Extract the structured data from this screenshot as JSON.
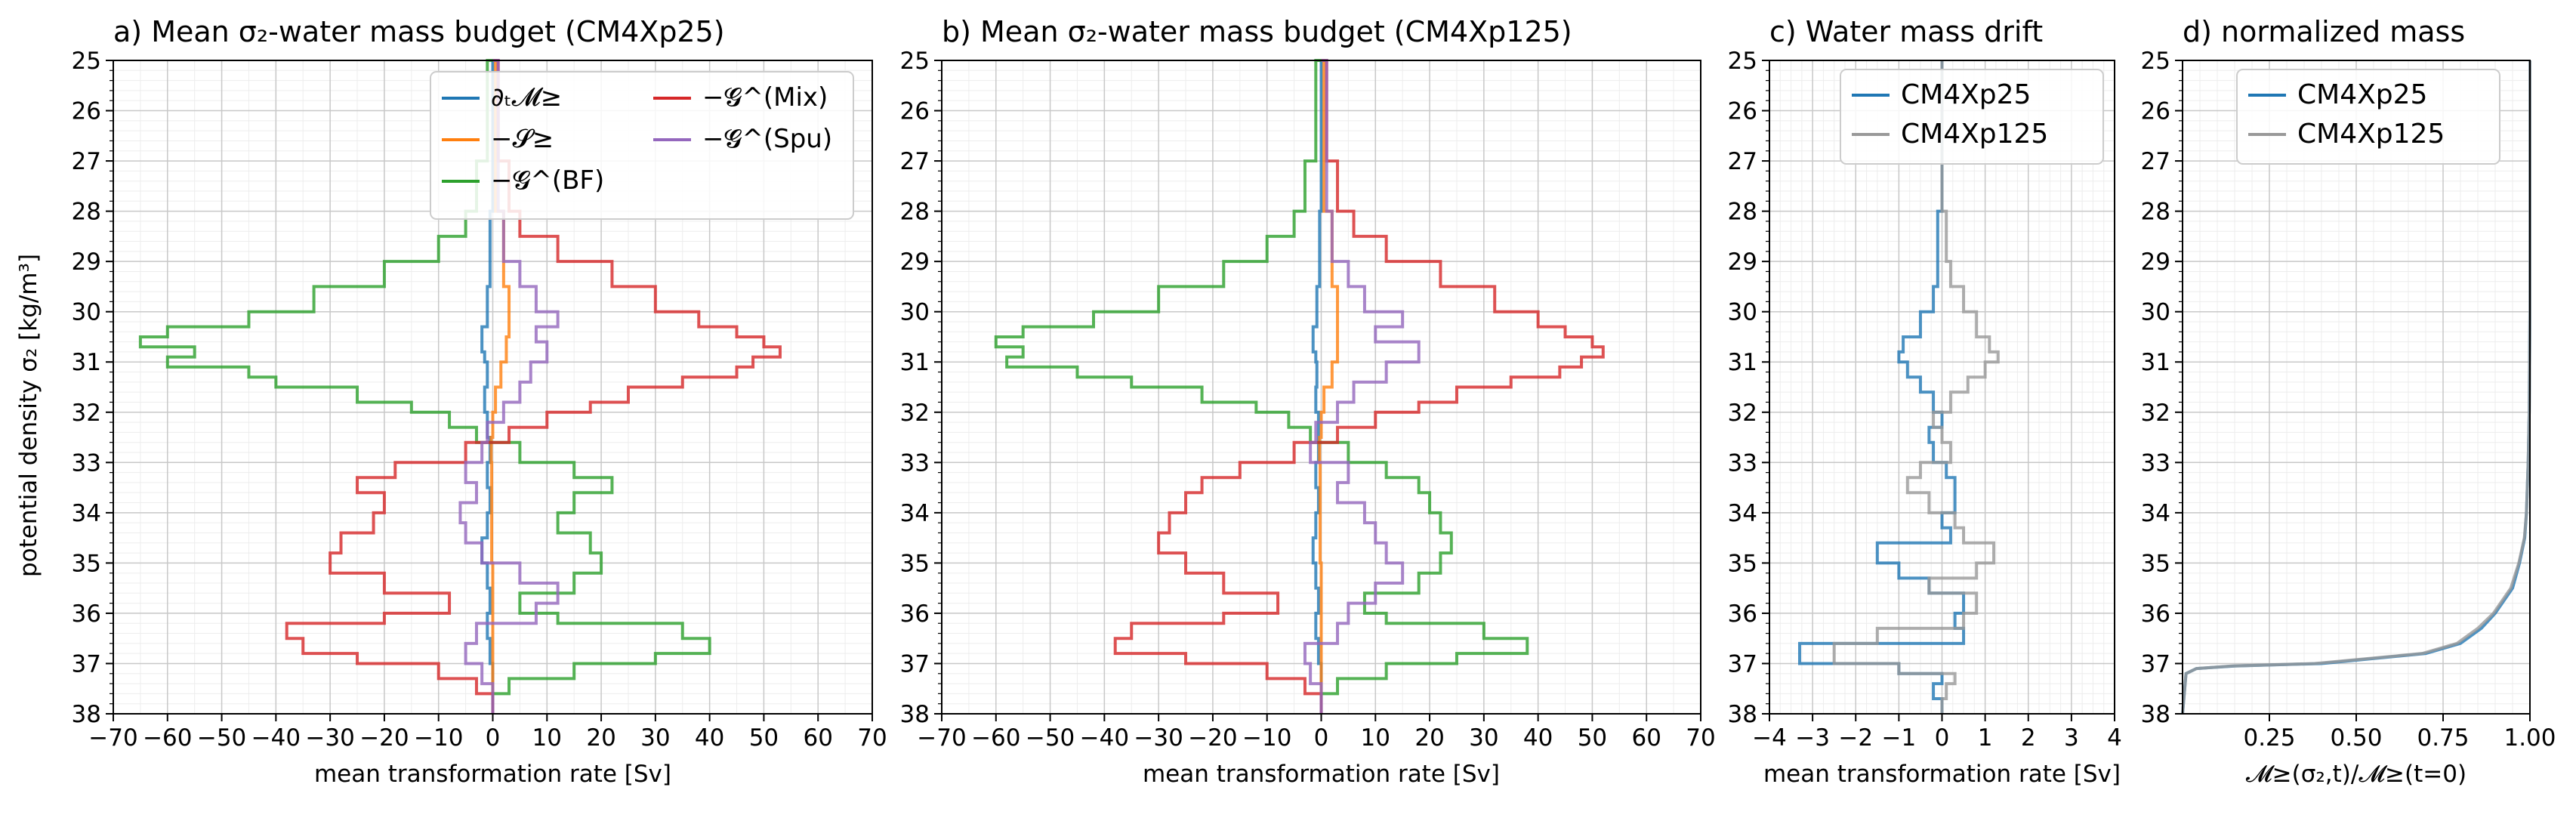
{
  "figure": {
    "ylabel": "potential density σ₂ [kg/m³]"
  },
  "chart_data": [
    {
      "type": "line",
      "panel": "a",
      "title": "a) Mean σ₂-water mass budget (CM4Xp25)",
      "xlabel": "mean transformation rate [Sv]",
      "xlim": [
        -70,
        70
      ],
      "ylim": [
        25,
        38
      ],
      "y_inverted": true,
      "grid": true,
      "legend_position": "upper-right",
      "legend_columns": 2,
      "xticks": [
        -70,
        -60,
        -50,
        -40,
        -30,
        -20,
        -10,
        0,
        10,
        20,
        30,
        40,
        50,
        60,
        70
      ],
      "yticks": [
        25,
        26,
        27,
        28,
        29,
        30,
        31,
        32,
        33,
        34,
        35,
        36,
        37,
        38
      ],
      "series": [
        {
          "name": "∂ₜ𝓜≥",
          "color": "#1f77b4",
          "y": [
            25,
            28,
            29.5,
            30.3,
            30.8,
            31,
            31.5,
            32,
            32.5,
            33,
            33.5,
            34,
            34.5,
            35,
            35.5,
            36,
            36.5,
            37,
            37.5,
            38
          ],
          "x": [
            0,
            0,
            -0.5,
            -1,
            -2,
            -1.5,
            -1,
            -1.5,
            -1,
            -0.5,
            -1,
            -0.5,
            -1,
            -2,
            -1,
            -0.5,
            -1,
            -0.5,
            0,
            0
          ]
        },
        {
          "name": "−𝓢≥",
          "color": "#ff7f0e",
          "y": [
            25,
            28,
            29.5,
            30.5,
            31,
            31.5,
            32,
            32.5,
            33,
            34,
            35,
            36,
            37,
            38
          ],
          "x": [
            0,
            0.5,
            2,
            3,
            2.5,
            1.5,
            0.5,
            0,
            -0.3,
            -0.2,
            -0.2,
            0,
            0,
            0
          ]
        },
        {
          "name": "−𝓖^(BF)",
          "color": "#2ca02c",
          "y": [
            25,
            27,
            28,
            28.5,
            29,
            29.5,
            30,
            30.3,
            30.5,
            30.7,
            30.9,
            31.1,
            31.3,
            31.5,
            31.8,
            32,
            32.3,
            32.6,
            33,
            33.3,
            33.6,
            34,
            34.4,
            34.8,
            35.2,
            35.6,
            36,
            36.2,
            36.5,
            36.8,
            37,
            37.3,
            37.6,
            38
          ],
          "x": [
            0,
            -1,
            -3,
            -5,
            -10,
            -20,
            -33,
            -45,
            -60,
            -65,
            -55,
            -60,
            -45,
            -40,
            -25,
            -15,
            -8,
            -3,
            5,
            15,
            22,
            15,
            12,
            18,
            20,
            15,
            5,
            12,
            35,
            40,
            30,
            15,
            3,
            0
          ]
        },
        {
          "name": "−𝓖^(Mix)",
          "color": "#d62728",
          "y": [
            25,
            27,
            28,
            28.5,
            29,
            29.5,
            30,
            30.3,
            30.5,
            30.7,
            30.9,
            31.1,
            31.3,
            31.5,
            31.8,
            32,
            32.3,
            32.6,
            33,
            33.3,
            33.6,
            34,
            34.4,
            34.8,
            35.2,
            35.6,
            36,
            36.2,
            36.5,
            36.8,
            37,
            37.3,
            37.6,
            38
          ],
          "x": [
            0,
            1,
            3,
            5,
            12,
            22,
            30,
            38,
            45,
            50,
            53,
            48,
            45,
            35,
            25,
            18,
            10,
            3,
            -5,
            -18,
            -25,
            -20,
            -22,
            -28,
            -30,
            -20,
            -8,
            -20,
            -38,
            -35,
            -25,
            -10,
            -3,
            0
          ]
        },
        {
          "name": "−𝓖^(Spu)",
          "color": "#9467bd",
          "y": [
            25,
            28,
            29,
            29.5,
            30,
            30.3,
            30.6,
            31,
            31.4,
            31.8,
            32.2,
            32.6,
            33,
            33.4,
            33.8,
            34.2,
            34.6,
            35,
            35.4,
            35.8,
            36.2,
            36.6,
            37,
            37.4,
            37.8,
            38
          ],
          "x": [
            0,
            1,
            2,
            5,
            8,
            12,
            8,
            10,
            7,
            5,
            2,
            -1,
            -2,
            -5,
            -3,
            -6,
            -5,
            -2,
            5,
            12,
            8,
            -3,
            -5,
            -2,
            0,
            0
          ]
        }
      ]
    },
    {
      "type": "line",
      "panel": "b",
      "title": "b) Mean σ₂-water mass budget (CM4Xp125)",
      "xlabel": "mean transformation rate [Sv]",
      "xlim": [
        -70,
        70
      ],
      "ylim": [
        25,
        38
      ],
      "y_inverted": true,
      "grid": true,
      "xticks": [
        -70,
        -60,
        -50,
        -40,
        -30,
        -20,
        -10,
        0,
        10,
        20,
        30,
        40,
        50,
        60,
        70
      ],
      "yticks": [
        25,
        26,
        27,
        28,
        29,
        30,
        31,
        32,
        33,
        34,
        35,
        36,
        37,
        38
      ],
      "series": [
        {
          "name": "∂ₜ𝓜≥",
          "color": "#1f77b4",
          "y": [
            25,
            28,
            29.5,
            30.3,
            30.8,
            31,
            31.5,
            32,
            32.5,
            33,
            33.5,
            34,
            34.5,
            35,
            35.5,
            36,
            36.5,
            37,
            37.5,
            38
          ],
          "x": [
            0,
            0,
            -0.3,
            -0.8,
            -1.5,
            -1,
            -0.8,
            -1,
            -0.5,
            -0.5,
            -1,
            -0.5,
            -1,
            -1.5,
            -1,
            -0.5,
            -1,
            -0.5,
            0,
            0
          ]
        },
        {
          "name": "−𝓢≥",
          "color": "#ff7f0e",
          "y": [
            25,
            28,
            29.5,
            30.5,
            31,
            31.5,
            32,
            32.5,
            33,
            34,
            35,
            36,
            37,
            38
          ],
          "x": [
            0,
            0.5,
            2,
            3,
            3,
            2,
            0.5,
            0,
            -0.3,
            -0.2,
            -0.2,
            0,
            0,
            0
          ]
        },
        {
          "name": "−𝓖^(BF)",
          "color": "#2ca02c",
          "y": [
            25,
            27,
            28,
            28.5,
            29,
            29.5,
            30,
            30.3,
            30.5,
            30.7,
            30.9,
            31.1,
            31.3,
            31.5,
            31.8,
            32,
            32.3,
            32.6,
            33,
            33.3,
            33.6,
            34,
            34.4,
            34.8,
            35.2,
            35.6,
            36,
            36.2,
            36.5,
            36.8,
            37,
            37.3,
            37.6,
            38
          ],
          "x": [
            0,
            -1,
            -3,
            -5,
            -10,
            -18,
            -30,
            -42,
            -55,
            -60,
            -55,
            -58,
            -45,
            -35,
            -22,
            -12,
            -6,
            -2,
            5,
            12,
            18,
            20,
            22,
            24,
            22,
            18,
            8,
            12,
            30,
            38,
            25,
            12,
            3,
            0
          ]
        },
        {
          "name": "−𝓖^(Mix)",
          "color": "#d62728",
          "y": [
            25,
            27,
            28,
            28.5,
            29,
            29.5,
            30,
            30.3,
            30.5,
            30.7,
            30.9,
            31.1,
            31.3,
            31.5,
            31.8,
            32,
            32.3,
            32.6,
            33,
            33.3,
            33.6,
            34,
            34.4,
            34.8,
            35.2,
            35.6,
            36,
            36.2,
            36.5,
            36.8,
            37,
            37.3,
            37.6,
            38
          ],
          "x": [
            0,
            1,
            3,
            6,
            12,
            22,
            32,
            40,
            45,
            50,
            52,
            48,
            44,
            35,
            25,
            18,
            10,
            3,
            -5,
            -15,
            -22,
            -25,
            -28,
            -30,
            -25,
            -18,
            -8,
            -18,
            -35,
            -38,
            -25,
            -10,
            -3,
            0
          ]
        },
        {
          "name": "−𝓖^(Spu)",
          "color": "#9467bd",
          "y": [
            25,
            28,
            29,
            29.5,
            30,
            30.3,
            30.6,
            31,
            31.4,
            31.8,
            32.2,
            32.6,
            33,
            33.4,
            33.8,
            34.2,
            34.6,
            35,
            35.4,
            35.8,
            36.2,
            36.6,
            37,
            37.4,
            37.8,
            38
          ],
          "x": [
            0,
            1,
            2,
            5,
            8,
            15,
            10,
            18,
            12,
            6,
            3,
            -1,
            -2,
            5,
            3,
            8,
            10,
            12,
            15,
            10,
            5,
            3,
            -3,
            -2,
            0,
            0
          ]
        }
      ]
    },
    {
      "type": "line",
      "panel": "c",
      "title": "c) Water mass drift",
      "xlabel": "mean transformation rate [Sv]",
      "xlim": [
        -4,
        4
      ],
      "ylim": [
        25,
        38
      ],
      "y_inverted": true,
      "grid": true,
      "legend_position": "upper-right",
      "xticks": [
        -4,
        -3,
        -2,
        -1,
        0,
        1,
        2,
        3,
        4
      ],
      "yticks": [
        25,
        26,
        27,
        28,
        29,
        30,
        31,
        32,
        33,
        34,
        35,
        36,
        37,
        38
      ],
      "series": [
        {
          "name": "CM4Xp25",
          "color": "#1f77b4",
          "y": [
            25,
            28,
            29,
            29.5,
            30,
            30.5,
            30.8,
            31,
            31.3,
            31.6,
            32,
            32.3,
            32.6,
            33,
            33.3,
            33.6,
            34,
            34.3,
            34.6,
            35,
            35.3,
            35.6,
            36,
            36.3,
            36.6,
            37,
            37.2,
            37.4,
            37.7,
            38
          ],
          "x": [
            0,
            0,
            -0.1,
            -0.1,
            -0.2,
            -0.5,
            -0.9,
            -1,
            -0.8,
            -0.5,
            -0.2,
            0,
            -0.3,
            -0.2,
            0.1,
            0.3,
            0.3,
            0,
            0.2,
            -1.5,
            -1,
            -0.3,
            0.5,
            0.3,
            0.5,
            -3.3,
            -1,
            0,
            -0.2,
            0
          ]
        },
        {
          "name": "CM4Xp125",
          "color": "#999999",
          "y": [
            25,
            28,
            29,
            29.5,
            30,
            30.5,
            30.8,
            31,
            31.3,
            31.6,
            32,
            32.3,
            32.6,
            33,
            33.3,
            33.6,
            34,
            34.3,
            34.6,
            35,
            35.3,
            35.6,
            36,
            36.3,
            36.6,
            37,
            37.2,
            37.4,
            37.7,
            38
          ],
          "x": [
            0,
            0,
            0.1,
            0.2,
            0.5,
            0.8,
            1.1,
            1.3,
            1,
            0.6,
            0.2,
            -0.2,
            0,
            0.2,
            -0.5,
            -0.8,
            -0.3,
            0.3,
            0.5,
            1.2,
            0.8,
            -0.3,
            0.8,
            0.5,
            -1.5,
            -2.5,
            -1,
            0.3,
            0.1,
            0
          ]
        }
      ]
    },
    {
      "type": "line",
      "panel": "d",
      "title": "d) normalized mass",
      "xlabel": "𝓜≥(σ₂,t)/𝓜≥(t=0)",
      "xlim": [
        0,
        1
      ],
      "ylim": [
        25,
        38
      ],
      "y_inverted": true,
      "grid": true,
      "legend_position": "upper-right",
      "xticks": [
        0.25,
        0.5,
        0.75,
        1.0
      ],
      "xtick_labels": [
        "0.25",
        "0.50",
        "0.75",
        "1.00"
      ],
      "yticks": [
        25,
        26,
        27,
        28,
        29,
        30,
        31,
        32,
        33,
        34,
        35,
        36,
        37,
        38
      ],
      "series": [
        {
          "name": "CM4Xp25",
          "color": "#1f77b4",
          "y": [
            25,
            30,
            32,
            33,
            34,
            34.5,
            35,
            35.5,
            36,
            36.3,
            36.6,
            36.8,
            37,
            37.05,
            37.1,
            37.2,
            38
          ],
          "x": [
            1,
            1,
            0.998,
            0.995,
            0.99,
            0.985,
            0.97,
            0.95,
            0.9,
            0.86,
            0.8,
            0.7,
            0.4,
            0.15,
            0.04,
            0.01,
            0
          ]
        },
        {
          "name": "CM4Xp125",
          "color": "#999999",
          "y": [
            25,
            30,
            32,
            33,
            34,
            34.5,
            35,
            35.5,
            36,
            36.3,
            36.6,
            36.8,
            37,
            37.05,
            37.1,
            37.2,
            38
          ],
          "x": [
            1,
            1,
            0.998,
            0.995,
            0.99,
            0.984,
            0.968,
            0.945,
            0.895,
            0.85,
            0.79,
            0.69,
            0.38,
            0.14,
            0.04,
            0.01,
            0
          ]
        }
      ]
    }
  ]
}
